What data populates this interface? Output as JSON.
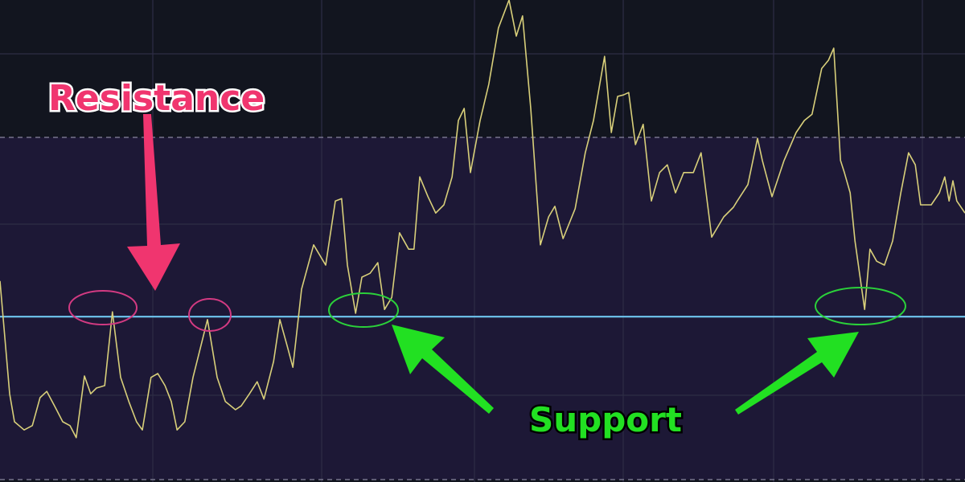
{
  "chart_data": {
    "type": "line",
    "title": "",
    "xlabel": "",
    "ylabel": "",
    "xlim": [
      0,
      200
    ],
    "ylim": [
      0,
      100
    ],
    "grid": true,
    "reference_lines": [
      {
        "kind": "dashed",
        "value": 71.5,
        "color": "#8a86a0"
      },
      {
        "kind": "support-resistance",
        "value": 34.3,
        "color": "#6ec6f0"
      },
      {
        "kind": "dashed",
        "value": 0.5,
        "color": "#8a86a0"
      }
    ],
    "series": [
      {
        "color": "#d8cf7a",
        "points": [
          [
            0,
            41.7
          ],
          [
            2,
            18.3
          ],
          [
            3,
            12.5
          ],
          [
            5,
            10.8
          ],
          [
            6.7,
            11.7
          ],
          [
            8.3,
            17.5
          ],
          [
            9.7,
            18.8
          ],
          [
            11.3,
            15.8
          ],
          [
            13,
            12.5
          ],
          [
            14.5,
            11.7
          ],
          [
            15.8,
            9.2
          ],
          [
            17.5,
            22
          ],
          [
            18.8,
            18.3
          ],
          [
            20,
            19.5
          ],
          [
            21.7,
            20
          ],
          [
            23.3,
            35.3
          ],
          [
            25,
            21.7
          ],
          [
            26.7,
            16.7
          ],
          [
            28.3,
            12.5
          ],
          [
            29.5,
            10.8
          ],
          [
            31.3,
            21.7
          ],
          [
            32.7,
            22.5
          ],
          [
            34.2,
            20
          ],
          [
            35.5,
            16.7
          ],
          [
            36.7,
            10.8
          ],
          [
            38.3,
            12.5
          ],
          [
            40,
            21.7
          ],
          [
            43,
            33.7
          ],
          [
            45,
            21.7
          ],
          [
            46.7,
            16.7
          ],
          [
            48.8,
            15
          ],
          [
            50,
            15.8
          ],
          [
            51.7,
            18.3
          ],
          [
            53.3,
            20.8
          ],
          [
            54.7,
            17.2
          ],
          [
            56.7,
            25
          ],
          [
            58,
            33.7
          ],
          [
            59.5,
            28.3
          ],
          [
            60.7,
            23.8
          ],
          [
            62.5,
            40
          ],
          [
            65,
            49.2
          ],
          [
            67.5,
            45
          ],
          [
            69.5,
            58.3
          ],
          [
            70.8,
            58.8
          ],
          [
            72,
            45
          ],
          [
            73.7,
            35
          ],
          [
            75,
            42.5
          ],
          [
            76.7,
            43.3
          ],
          [
            78.3,
            45.5
          ],
          [
            79.7,
            35.8
          ],
          [
            81.2,
            38.3
          ],
          [
            82.8,
            51.7
          ],
          [
            84.7,
            48.3
          ],
          [
            85.8,
            48.3
          ],
          [
            87,
            63.3
          ],
          [
            88.7,
            59.2
          ],
          [
            90.3,
            55.8
          ],
          [
            92,
            57.5
          ],
          [
            93.7,
            63.3
          ],
          [
            95,
            75
          ],
          [
            96.2,
            77.5
          ],
          [
            97.5,
            64.2
          ],
          [
            99.5,
            75
          ],
          [
            101.3,
            82.5
          ],
          [
            103.3,
            94.2
          ],
          [
            105.5,
            100
          ],
          [
            107,
            92.5
          ],
          [
            108.3,
            96.7
          ],
          [
            110,
            77.5
          ],
          [
            112,
            49.2
          ],
          [
            113.7,
            55
          ],
          [
            115,
            57.2
          ],
          [
            116.7,
            50.5
          ],
          [
            119.2,
            56.7
          ],
          [
            121.3,
            68.3
          ],
          [
            123,
            75
          ],
          [
            125.3,
            88.3
          ],
          [
            126.7,
            72.5
          ],
          [
            128,
            80
          ],
          [
            129.2,
            80.3
          ],
          [
            130.3,
            80.8
          ],
          [
            131.7,
            70
          ],
          [
            133.3,
            74.2
          ],
          [
            135,
            58.3
          ],
          [
            136.7,
            64.2
          ],
          [
            138.3,
            65.8
          ],
          [
            140,
            60
          ],
          [
            141.7,
            64.2
          ],
          [
            143.7,
            64.2
          ],
          [
            145.3,
            68.3
          ],
          [
            147.5,
            50.8
          ],
          [
            150,
            55
          ],
          [
            152,
            57
          ],
          [
            152.8,
            58.3
          ],
          [
            155,
            61.7
          ],
          [
            157,
            71.3
          ],
          [
            158,
            66.7
          ],
          [
            160,
            59.2
          ],
          [
            162.5,
            66.7
          ],
          [
            165,
            72.5
          ],
          [
            166.7,
            75
          ],
          [
            168.3,
            76.3
          ],
          [
            170.3,
            85.8
          ],
          [
            171.7,
            87.5
          ],
          [
            172.8,
            90
          ],
          [
            174.2,
            66.7
          ],
          [
            175,
            64.2
          ],
          [
            176.2,
            60
          ],
          [
            177.2,
            50
          ],
          [
            179.2,
            35.8
          ],
          [
            180.3,
            48.3
          ],
          [
            181.7,
            45.8
          ],
          [
            183.3,
            45
          ],
          [
            185,
            50
          ],
          [
            186.7,
            60
          ],
          [
            188.3,
            68.3
          ],
          [
            189.7,
            65.8
          ],
          [
            190.8,
            57.5
          ],
          [
            193,
            57.5
          ],
          [
            194.7,
            60
          ],
          [
            195.8,
            63.3
          ],
          [
            196.7,
            58.3
          ],
          [
            197.5,
            62.5
          ],
          [
            198.3,
            58.3
          ],
          [
            200,
            55.8
          ]
        ]
      }
    ],
    "annotations": {
      "resistance_label": "Resistance",
      "support_label": "Support",
      "resistance_color": "#f0356f",
      "support_color": "#22e022"
    }
  }
}
